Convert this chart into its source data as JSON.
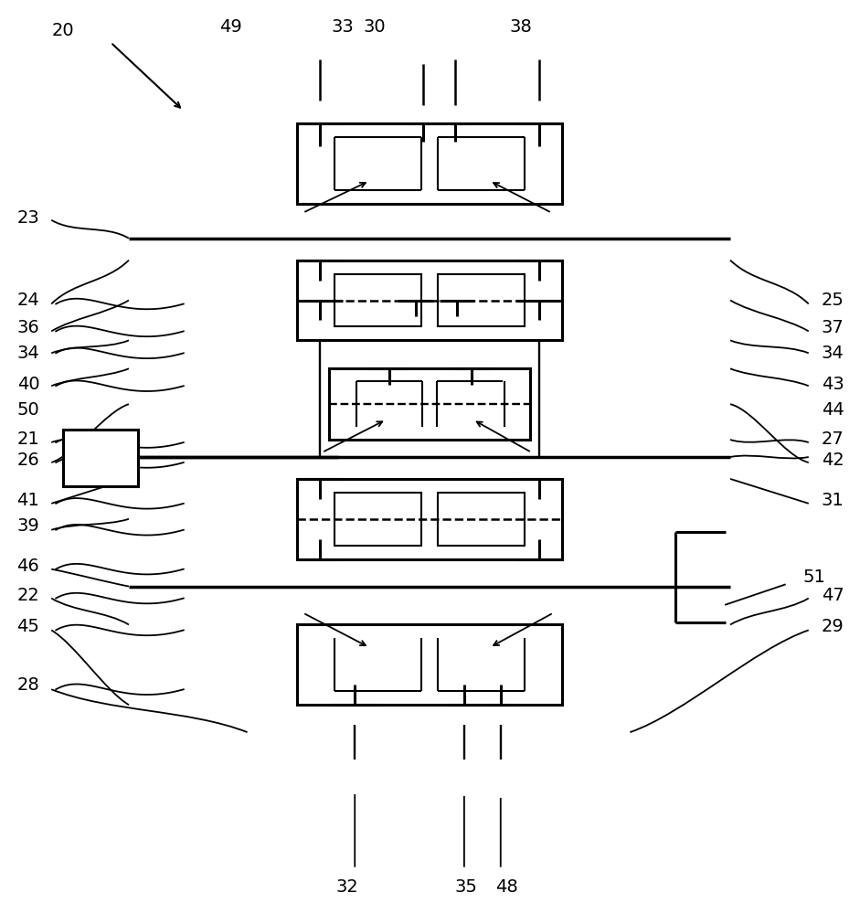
{
  "bg_color": "#ffffff",
  "lw": 1.5,
  "lw_thick": 2.2,
  "lw_shaft": 2.5,
  "figsize": [
    9.41,
    10.0
  ],
  "dpi": 100
}
